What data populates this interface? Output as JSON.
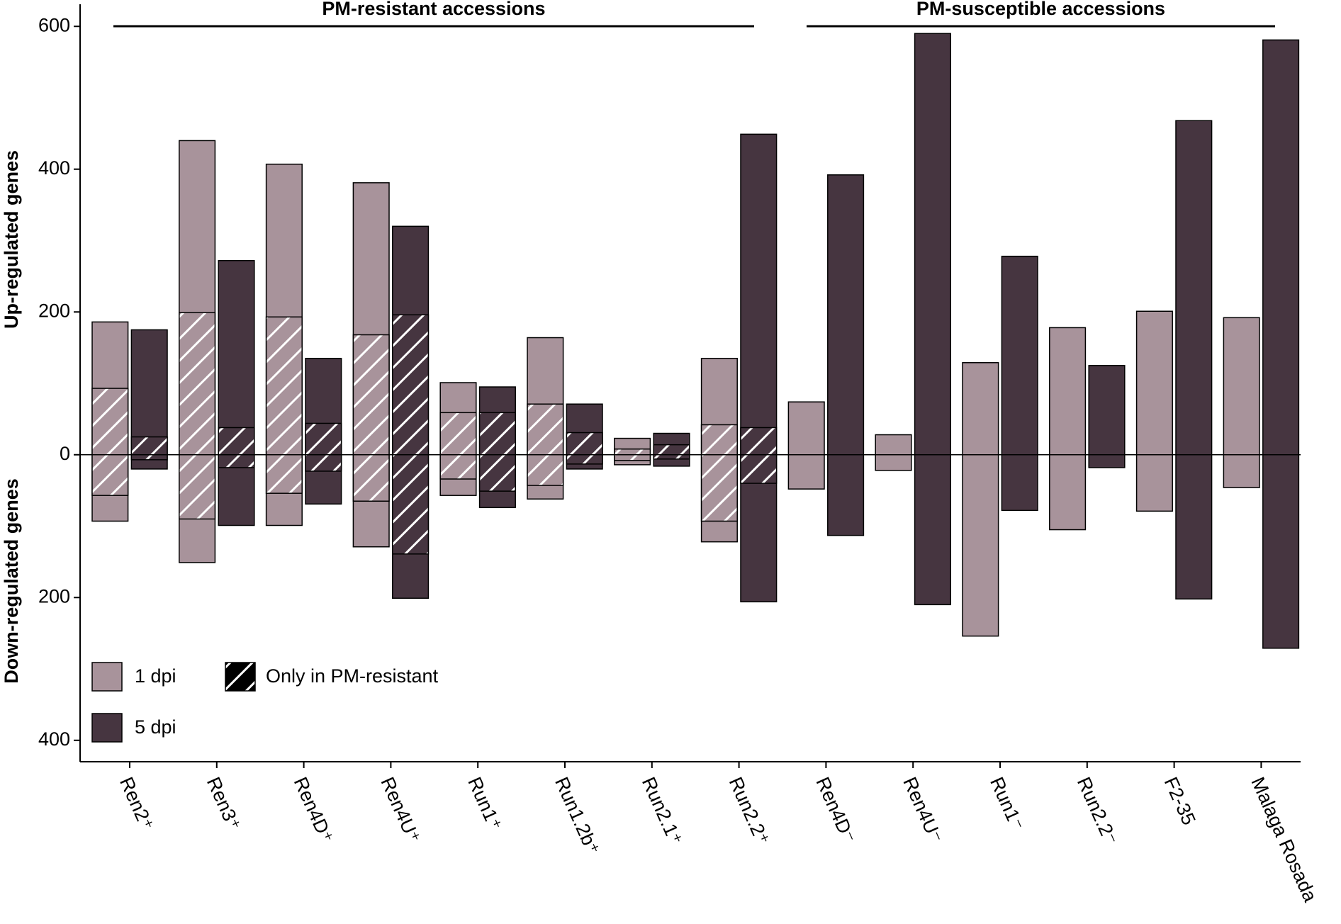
{
  "chart_data": {
    "type": "bar",
    "y_label_up": "Up-regulated genes",
    "y_label_down": "Down-regulated genes",
    "annotations": [
      "PM-resistant accessions",
      "PM-susceptible accessions"
    ],
    "categories": [
      "Ren2⁺",
      "Ren3⁺",
      "Ren4D⁺",
      "Ren4U⁺",
      "Run1⁺",
      "Run1.2b⁺",
      "Run2.1⁺",
      "Run2.2⁺",
      "Ren4D⁻",
      "Ren4U⁻",
      "Run1⁻",
      "Run2.2⁻",
      "F2-35",
      "Malaga Rosada"
    ],
    "series": [
      {
        "name": "1 dpi",
        "color": "#a8939b",
        "values": [
          186,
          440,
          407,
          381,
          101,
          164,
          23,
          135,
          74,
          28,
          129,
          178,
          201,
          192
        ],
        "down_values": [
          -93,
          -151,
          -99,
          -129,
          -57,
          -62,
          -14,
          -122,
          -48,
          -22,
          -254,
          -105,
          -79,
          -46
        ],
        "only_up": [
          93,
          199,
          193,
          168,
          59,
          71,
          8,
          42,
          null,
          null,
          null,
          null,
          null,
          null
        ],
        "only_down": [
          -57,
          -90,
          -54,
          -65,
          -34,
          -43,
          -8,
          -93,
          null,
          null,
          null,
          null,
          null,
          null
        ]
      },
      {
        "name": "5 dpi",
        "color": "#463540",
        "values": [
          175,
          272,
          135,
          320,
          95,
          71,
          30,
          449,
          392,
          590,
          278,
          125,
          468,
          581
        ],
        "down_values": [
          -20,
          -99,
          -69,
          -201,
          -74,
          -20,
          -16,
          -206,
          -113,
          -210,
          -78,
          -18,
          -202,
          -271
        ],
        "only_up": [
          25,
          38,
          44,
          196,
          59,
          31,
          14,
          38,
          null,
          null,
          null,
          null,
          null,
          null
        ],
        "only_down": [
          -7,
          -18,
          -23,
          -139,
          -51,
          -13,
          -6,
          -40,
          null,
          null,
          null,
          null,
          null,
          null
        ]
      }
    ],
    "hatch_legend": "Only in PM-resistant",
    "ylim": [
      -430,
      631
    ],
    "yticks": [
      600,
      400,
      200,
      0,
      {
        "value": -200,
        "label": "200"
      },
      {
        "value": -400,
        "label": "400"
      }
    ]
  }
}
